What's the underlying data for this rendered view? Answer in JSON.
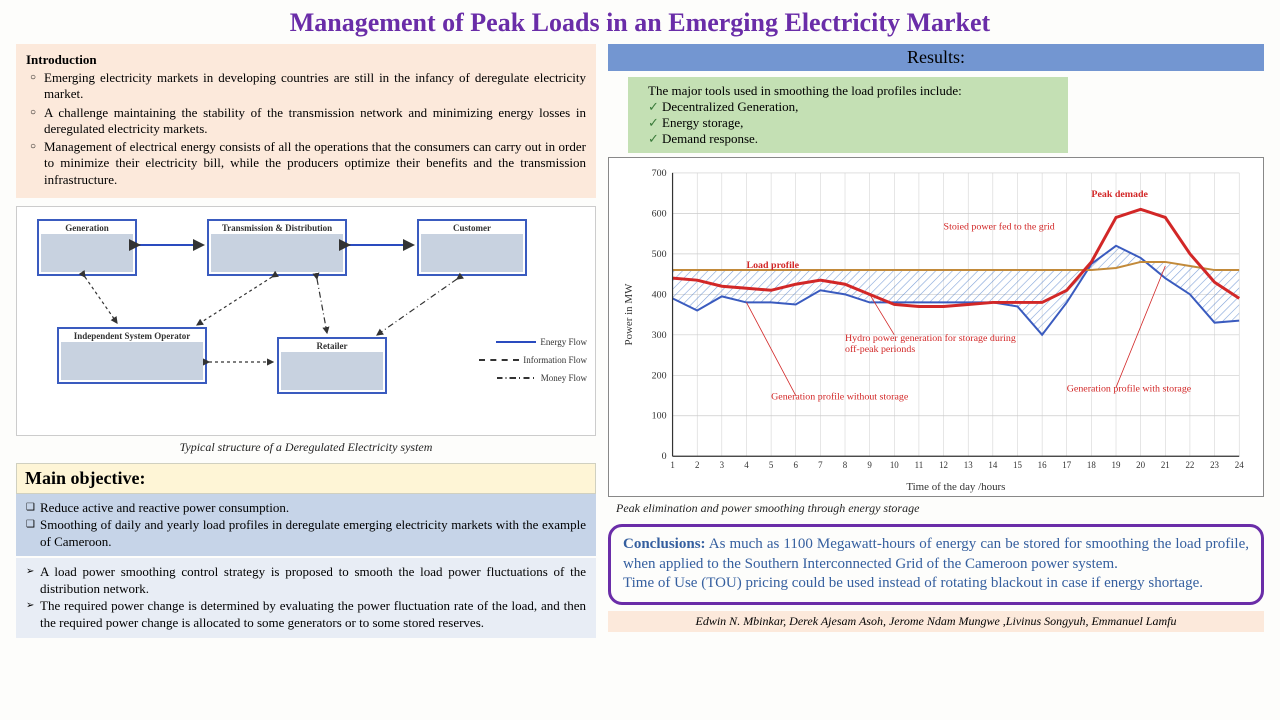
{
  "title": "Management of Peak Loads in an Emerging Electricity Market",
  "intro": {
    "heading": "Introduction",
    "items": [
      "Emerging electricity markets in developing countries are still in the infancy of deregulate electricity market.",
      "A challenge maintaining the stability of the transmission network and minimizing energy losses in deregulated electricity markets.",
      "Management of electrical energy consists of all the operations that the consumers can carry out in order to minimize their electricity bill, while the producers optimize their benefits and the transmission infrastructure."
    ]
  },
  "diagram": {
    "nodes": {
      "gen": "Generation",
      "td": "Transmission & Distribution",
      "cust": "Customer",
      "iso": "Independent System Operator",
      "ret": "Retailer"
    },
    "legend": {
      "energy": "Energy Flow",
      "info": "Information Flow",
      "money": "Money Flow"
    },
    "caption": "Typical structure of a Deregulated Electricity system"
  },
  "objective": {
    "heading": "Main objective:",
    "box1": [
      "Reduce  active and reactive power consumption.",
      "Smoothing of daily and yearly load profiles in deregulate emerging electricity markets with the example of Cameroon."
    ],
    "box2": [
      "A load power smoothing control strategy is proposed to smooth the load power fluctuations of the distribution network.",
      "The required power change is determined by evaluating the power fluctuation rate of the load, and then the required power change is allocated to some generators or to some stored reserves."
    ]
  },
  "results": {
    "heading": "Results:",
    "tools_intro": "The major tools used in smoothing the load profiles include:",
    "tools": [
      "Decentralized Generation,",
      "Energy storage,",
      "Demand response."
    ],
    "chart": {
      "type": "line",
      "xlabel": "Time of the day /hours",
      "ylabel": "Power in MW",
      "ylim": [
        0,
        700
      ],
      "ytick_step": 100,
      "xlim": [
        1,
        24
      ],
      "background": "#ffffff",
      "grid_color": "#cccccc",
      "hours": [
        1,
        2,
        3,
        4,
        5,
        6,
        7,
        8,
        9,
        10,
        11,
        12,
        13,
        14,
        15,
        16,
        17,
        18,
        19,
        20,
        21,
        22,
        23,
        24
      ],
      "series": {
        "load_profile": {
          "label": "Load profile",
          "color": "#d22727",
          "width": 3,
          "values": [
            440,
            435,
            420,
            415,
            410,
            425,
            435,
            425,
            400,
            375,
            370,
            370,
            375,
            380,
            380,
            380,
            410,
            480,
            590,
            610,
            590,
            500,
            430,
            390
          ]
        },
        "gen_with_storage": {
          "label": "Generation profile with storage",
          "color": "#c28a3a",
          "width": 2,
          "values": [
            460,
            460,
            460,
            460,
            460,
            460,
            460,
            460,
            460,
            460,
            460,
            460,
            460,
            460,
            460,
            460,
            460,
            460,
            465,
            480,
            480,
            470,
            460,
            460
          ]
        },
        "gen_without_storage": {
          "label": "Generation profile without storage",
          "color": "#3a5bbf",
          "width": 2,
          "values": [
            390,
            360,
            395,
            380,
            380,
            375,
            410,
            400,
            380,
            380,
            380,
            380,
            380,
            380,
            370,
            300,
            380,
            475,
            520,
            490,
            440,
            400,
            330,
            335
          ]
        }
      },
      "annotations": {
        "peak": "Peak demade",
        "stored": "Stoied power fed to the grid",
        "hydro": "Hydro power generation for storage during off-peak perionds"
      },
      "hatch_color": "#4a7ac8"
    },
    "chart_caption": "Peak elimination and power smoothing through energy storage"
  },
  "conclusions": {
    "heading": "Conclusions:",
    "text": " As much as 1100 Megawatt-hours of energy can be stored for smoothing the load profile, when applied to the Southern Interconnected Grid of the Cameroon power system.\nTime of Use (TOU) pricing could be used instead of rotating blackout in case if energy shortage."
  },
  "authors": "Edwin N. Mbinkar, Derek Ajesam Asoh, Jerome Ndam Mungwe ,Livinus Songyuh, Emmanuel Lamfu"
}
